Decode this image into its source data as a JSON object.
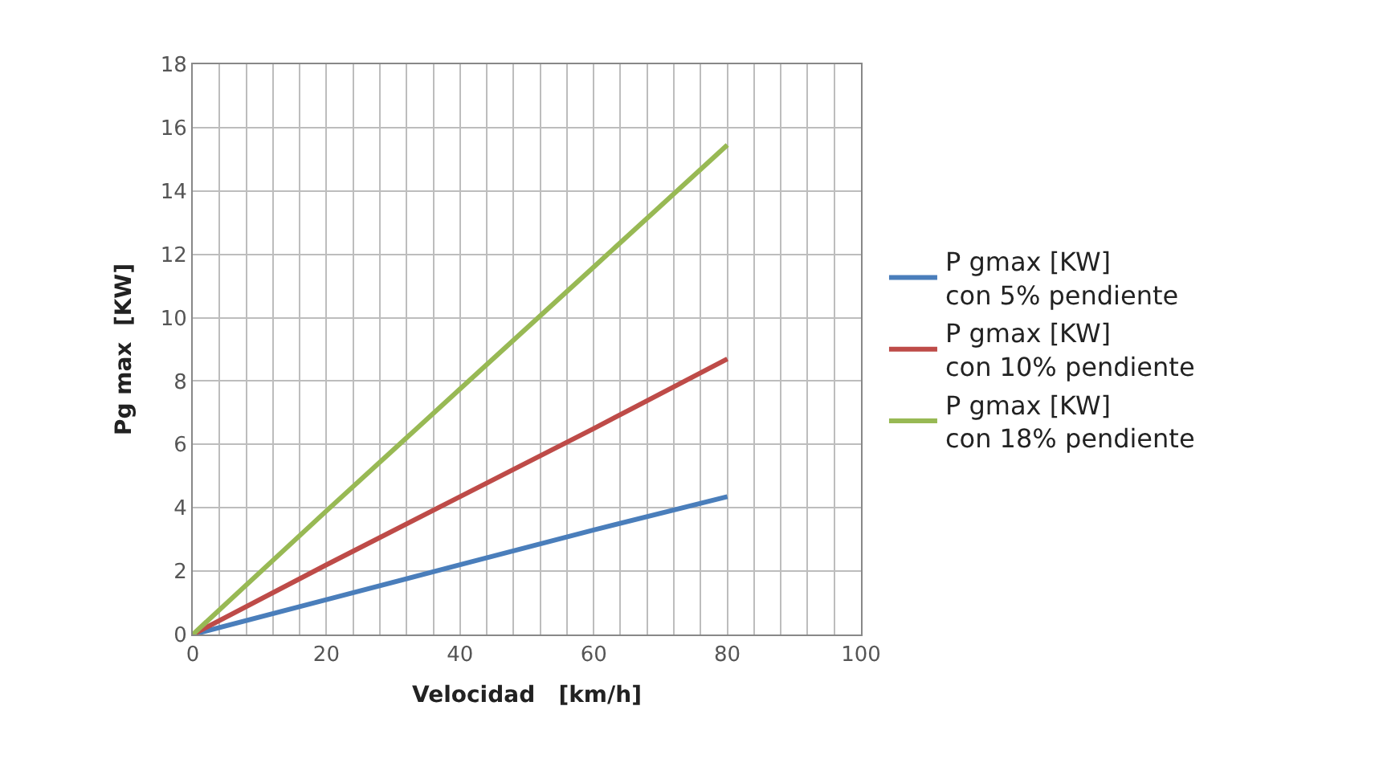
{
  "chart_data": {
    "type": "line",
    "xlabel": "Velocidad   [km/h]",
    "ylabel": "Pg max  [KW]",
    "x": [
      0,
      20,
      40,
      60,
      80
    ],
    "series": [
      {
        "name": "P gmax [KW]\ncon 5% pendiente",
        "color": "#4a7ebb",
        "values": [
          0,
          1.1,
          2.2,
          3.3,
          4.35
        ]
      },
      {
        "name": "P gmax [KW]\ncon 10% pendiente",
        "color": "#be4b48",
        "values": [
          0,
          2.2,
          4.35,
          6.5,
          8.7
        ]
      },
      {
        "name": "P gmax [KW]\ncon 18% pendiente",
        "color": "#98b954",
        "values": [
          0,
          3.9,
          7.75,
          11.6,
          15.45
        ]
      }
    ],
    "xlim": [
      0,
      100
    ],
    "xticks": [
      0,
      {
        "value": 4,
        "label": null
      },
      {
        "value": 8,
        "label": null
      },
      {
        "value": 12,
        "label": null
      },
      {
        "value": 16,
        "label": null
      },
      20,
      {
        "value": 24,
        "label": null
      },
      {
        "value": 28,
        "label": null
      },
      {
        "value": 32,
        "label": null
      },
      {
        "value": 36,
        "label": null
      },
      40,
      {
        "value": 44,
        "label": null
      },
      {
        "value": 48,
        "label": null
      },
      {
        "value": 52,
        "label": null
      },
      {
        "value": 56,
        "label": null
      },
      60,
      {
        "value": 64,
        "label": null
      },
      {
        "value": 68,
        "label": null
      },
      {
        "value": 72,
        "label": null
      },
      {
        "value": 76,
        "label": null
      },
      80,
      {
        "value": 84,
        "label": null
      },
      {
        "value": 88,
        "label": null
      },
      {
        "value": 92,
        "label": null
      },
      {
        "value": 96,
        "label": null
      },
      100
    ],
    "ylim": [
      0,
      18
    ],
    "yticks": [
      0,
      2,
      4,
      6,
      8,
      10,
      12,
      14,
      16,
      18
    ],
    "grid": true,
    "legend": "right",
    "marker": "none",
    "line_style": "solid"
  }
}
